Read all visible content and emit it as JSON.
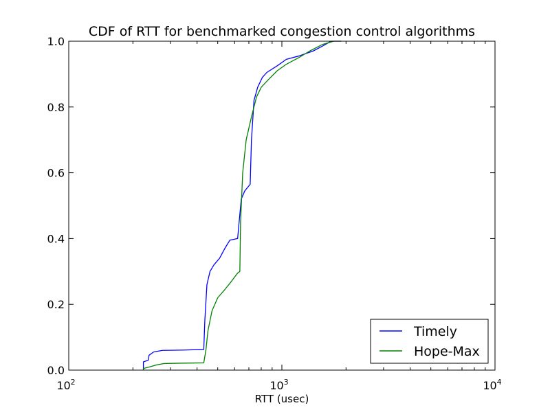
{
  "chart_data": {
    "type": "line",
    "title": "CDF of RTT for benchmarked congestion control algorithms",
    "xlabel": "RTT (usec)",
    "ylabel": "",
    "xscale": "log",
    "xlim": [
      100,
      10000
    ],
    "ylim": [
      0.0,
      1.0
    ],
    "grid": false,
    "legend_position": "lower-right",
    "x_ticks": [
      {
        "base": "10",
        "exp": "2",
        "value": 100
      },
      {
        "base": "10",
        "exp": "3",
        "value": 1000
      },
      {
        "base": "10",
        "exp": "4",
        "value": 10000
      }
    ],
    "y_ticks": [
      {
        "label": "0.0",
        "value": 0.0
      },
      {
        "label": "0.2",
        "value": 0.2
      },
      {
        "label": "0.4",
        "value": 0.4
      },
      {
        "label": "0.6",
        "value": 0.6
      },
      {
        "label": "0.8",
        "value": 0.8
      },
      {
        "label": "1.0",
        "value": 1.0
      }
    ],
    "series": [
      {
        "name": "Timely",
        "color": "#0000ff",
        "points": [
          [
            224,
            0.0
          ],
          [
            224,
            0.025
          ],
          [
            236,
            0.03
          ],
          [
            238,
            0.045
          ],
          [
            250,
            0.055
          ],
          [
            275,
            0.06
          ],
          [
            350,
            0.061
          ],
          [
            430,
            0.063
          ],
          [
            435,
            0.15
          ],
          [
            445,
            0.26
          ],
          [
            460,
            0.3
          ],
          [
            480,
            0.32
          ],
          [
            510,
            0.34
          ],
          [
            540,
            0.37
          ],
          [
            570,
            0.395
          ],
          [
            620,
            0.4
          ],
          [
            630,
            0.45
          ],
          [
            645,
            0.52
          ],
          [
            670,
            0.545
          ],
          [
            710,
            0.565
          ],
          [
            720,
            0.7
          ],
          [
            740,
            0.82
          ],
          [
            770,
            0.86
          ],
          [
            810,
            0.89
          ],
          [
            850,
            0.905
          ],
          [
            950,
            0.925
          ],
          [
            1050,
            0.945
          ],
          [
            1200,
            0.955
          ],
          [
            1400,
            0.97
          ],
          [
            1550,
            0.985
          ],
          [
            1700,
            1.0
          ],
          [
            1900,
            1.0
          ]
        ]
      },
      {
        "name": "Hope-Max",
        "color": "#008000",
        "points": [
          [
            224,
            0.0
          ],
          [
            224,
            0.005
          ],
          [
            240,
            0.01
          ],
          [
            255,
            0.015
          ],
          [
            280,
            0.02
          ],
          [
            330,
            0.021
          ],
          [
            430,
            0.022
          ],
          [
            440,
            0.06
          ],
          [
            450,
            0.12
          ],
          [
            470,
            0.18
          ],
          [
            500,
            0.22
          ],
          [
            540,
            0.245
          ],
          [
            580,
            0.27
          ],
          [
            620,
            0.295
          ],
          [
            635,
            0.3
          ],
          [
            640,
            0.45
          ],
          [
            655,
            0.6
          ],
          [
            680,
            0.7
          ],
          [
            720,
            0.77
          ],
          [
            760,
            0.83
          ],
          [
            800,
            0.86
          ],
          [
            870,
            0.885
          ],
          [
            950,
            0.91
          ],
          [
            1050,
            0.93
          ],
          [
            1200,
            0.95
          ],
          [
            1350,
            0.97
          ],
          [
            1550,
            0.99
          ],
          [
            1750,
            1.0
          ],
          [
            1900,
            1.0
          ]
        ]
      }
    ]
  }
}
